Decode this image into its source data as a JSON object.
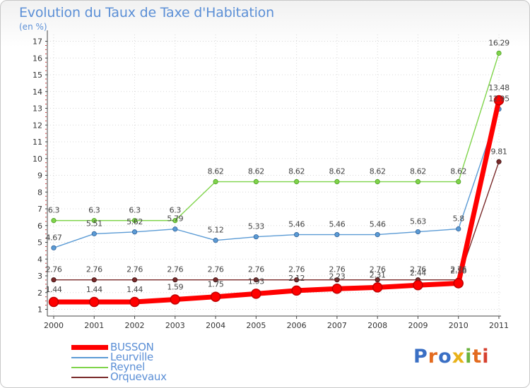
{
  "title": "Evolution du Taux de Taxe d'Habitation",
  "unit": "(en %)",
  "logo_text": "Proxiti",
  "chart_data": {
    "type": "line",
    "title": "Evolution du Taux de Taxe d'Habitation",
    "ylabel": "(en %)",
    "xlabel": "",
    "categories": [
      "2000",
      "2001",
      "2002",
      "2003",
      "2004",
      "2005",
      "2006",
      "2007",
      "2008",
      "2009",
      "2010",
      "2011"
    ],
    "yticks": [
      "1",
      "2",
      "3",
      "4",
      "5",
      "6",
      "7",
      "8",
      "9",
      "10",
      "11",
      "12",
      "13",
      "14",
      "15",
      "16",
      "17"
    ],
    "ylim": [
      0.6,
      17.4
    ],
    "grid": true,
    "series": [
      {
        "name": "BUSSON",
        "color": "#ff0000",
        "values": [
          1.44,
          1.44,
          1.44,
          1.59,
          1.75,
          1.93,
          2.12,
          2.23,
          2.31,
          2.44,
          2.56,
          13.48
        ],
        "labels": [
          "1.44",
          "1.44",
          "1.44",
          "1.59",
          "1.75",
          "1.93",
          "2.12",
          "2.23",
          "2.31",
          "2.44",
          "2.56",
          "13.48"
        ]
      },
      {
        "name": "Leurville",
        "color": "#5b9bd5",
        "values": [
          4.67,
          5.51,
          5.62,
          5.79,
          5.12,
          5.33,
          5.46,
          5.46,
          5.46,
          5.63,
          5.8,
          12.95
        ],
        "labels": [
          "4.67",
          "5.51",
          "5.62",
          "5.79",
          "5.12",
          "5.33",
          "5.46",
          "5.46",
          "5.46",
          "5.63",
          "5.8",
          "12.95"
        ]
      },
      {
        "name": "Reynel",
        "color": "#7fd44a",
        "values": [
          6.3,
          6.3,
          6.3,
          6.3,
          8.62,
          8.62,
          8.62,
          8.62,
          8.62,
          8.62,
          8.62,
          16.29
        ],
        "labels": [
          "6.3",
          "6.3",
          "6.3",
          "6.3",
          "8.62",
          "8.62",
          "8.62",
          "8.62",
          "8.62",
          "8.62",
          "8.62",
          "16.29"
        ]
      },
      {
        "name": "Orquevaux",
        "color": "#7a2a2a",
        "values": [
          2.76,
          2.76,
          2.76,
          2.76,
          2.76,
          2.76,
          2.76,
          2.76,
          2.76,
          2.76,
          2.76,
          9.81
        ],
        "labels": [
          "2.76",
          "2.76",
          "2.76",
          "2.76",
          "2.76",
          "2.76",
          "2.76",
          "2.76",
          "2.76",
          "2.76",
          "2.76",
          "9.81"
        ]
      }
    ]
  }
}
